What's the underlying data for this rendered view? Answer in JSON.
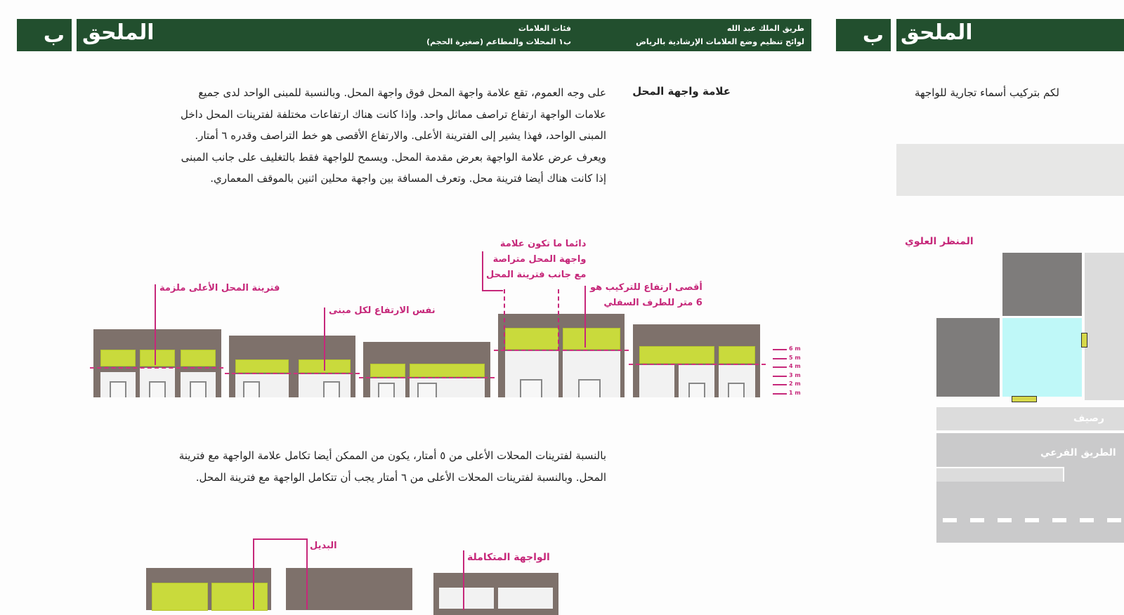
{
  "left_page": {
    "header": {
      "appendix_letter": "ب",
      "appendix_title": "الملحق",
      "doc_title_line1": "طريق الملك عبد الله",
      "doc_title_line2": "لوائح تنظيم وضع العلامات الإرشادية بالرياض",
      "section_line1": "فئات العلامات",
      "section_line2": "ب١ المحلات والمطاعم (صغيرة الحجم)"
    },
    "section_heading": "علامة واجهة المحل",
    "paragraph1": [
      "على وجه العموم، تقع علامة واجهة المحل فوق واجهة المحل. وبالنسبة للمبنى الواحد لدى جميع",
      "علامات الواجهة ارتفاع تراصف مماثل واحد. وإذا كانت هناك ارتفاعات مختلفة لفترينات المحل داخل",
      "المبنى الواحد، فهذا يشير إلى الفترينة الأعلى. والارتفاع الأقصى هو خط التراصف وقدره ٦ أمتار.",
      "ويعرف عرض علامة الواجهة بعرض مقدمة المحل. ويسمح للواجهة فقط بالتغليف على جانب المبنى",
      "إذا كانت هناك أيضا فترينة محل. وتعرف المسافة بين واجهة محلين اثنين بالموقف المعماري."
    ],
    "diagram1": {
      "annotations": {
        "highest_window": "فترينة المحل الأعلى ملزمة",
        "same_height": "نفس الارتفاع لكل مبنى",
        "aligned_line1": "دائما ما تكون علامة",
        "aligned_line2": "واجهة المحل متراصة",
        "aligned_line3": "مع جانب فترينة المحل",
        "max_height_line1": "أقصى ارتفاع للتركيب هو",
        "max_height_line2": "6 متر للطرف السفلي"
      },
      "scale_labels": [
        "6 m",
        "5 m",
        "4 m",
        "3 m",
        "2 m",
        "1 m"
      ]
    },
    "paragraph2": [
      "بالنسبة لفترينات المحلات الأعلى من ٥ أمتار، يكون من الممكن أيضا تكامل علامة الواجهة مع فترينة",
      "المحل. وبالنسبة لفترينات المحلات الأعلى من ٦ أمتار يجب أن تتكامل الواجهة مع فترينة المحل."
    ],
    "diagram2": {
      "alternative_label": "البديل",
      "integrated_label": "الواجهة المتكاملة"
    }
  },
  "right_page": {
    "header": {
      "appendix_letter": "ب",
      "appendix_title": "الملحق"
    },
    "text_fragment": "لكم بتركيب أسماء تجارية للواجهة",
    "plan_title": "المنظر العلوي",
    "sidewalk_label": "رصيف",
    "road_label": "الطريق الفرعي"
  },
  "colors": {
    "header_green": "#224f2e",
    "annotation_pink": "#c6287a",
    "sign_green": "#c9da3c",
    "building_brown": "#7e716b",
    "plan_cyan": "#bff8f8"
  }
}
